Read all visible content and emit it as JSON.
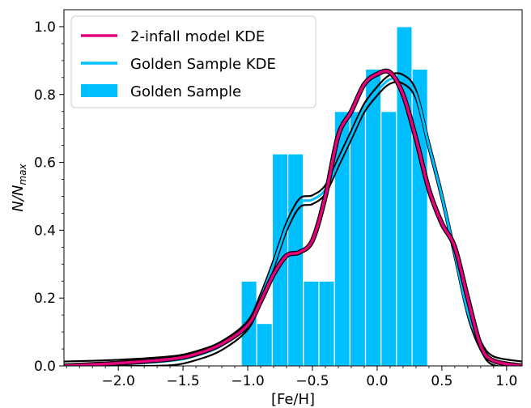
{
  "chart_data": {
    "type": "bar",
    "xlabel": "[Fe/H]",
    "ylabel": "N/N",
    "ylabel_sub": "max",
    "xlim": [
      -2.42,
      1.12
    ],
    "ylim": [
      0.0,
      1.05
    ],
    "xticks": [
      -2.0,
      -1.5,
      -1.0,
      -0.5,
      0.0,
      0.5,
      1.0
    ],
    "xtick_labels": [
      "−2.0",
      "−1.5",
      "−1.0",
      "−0.5",
      "0.0",
      "0.5",
      "1.0"
    ],
    "yticks": [
      0.0,
      0.2,
      0.4,
      0.6,
      0.8,
      1.0
    ],
    "ytick_labels": [
      "0.0",
      "0.2",
      "0.4",
      "0.6",
      "0.8",
      "1.0"
    ],
    "grid": false,
    "legend_position": "top-left",
    "histogram": {
      "name": "Golden Sample",
      "color": "#00bfff",
      "bin_width": 0.12,
      "bin_left_edges": [
        -1.05,
        -0.93,
        -0.81,
        -0.69,
        -0.57,
        -0.45,
        -0.33,
        -0.21,
        -0.09,
        0.03,
        0.15,
        0.27,
        0.39
      ],
      "values": [
        0.25,
        0.125,
        0.625,
        0.625,
        0.25,
        0.25,
        0.75,
        0.75,
        0.875,
        0.75,
        1.0,
        0.875,
        0.0
      ]
    },
    "series": [
      {
        "name": "Golden Sample KDE",
        "color": "#00bfff",
        "x": [
          -2.42,
          -2.0,
          -1.6,
          -1.4,
          -1.2,
          -1.0,
          -0.9,
          -0.8,
          -0.7,
          -0.6,
          -0.5,
          -0.4,
          -0.3,
          -0.2,
          -0.1,
          0.0,
          0.1,
          0.2,
          0.3,
          0.4,
          0.5,
          0.6,
          0.7,
          0.8,
          0.9,
          1.12
        ],
        "y": [
          0.0,
          0.005,
          0.015,
          0.03,
          0.06,
          0.12,
          0.2,
          0.3,
          0.41,
          0.48,
          0.49,
          0.52,
          0.6,
          0.68,
          0.76,
          0.81,
          0.845,
          0.845,
          0.8,
          0.65,
          0.5,
          0.33,
          0.16,
          0.06,
          0.015,
          0.0
        ],
        "offset": 0.013
      },
      {
        "name": "2-infall model KDE",
        "color": "#e6007e",
        "x": [
          -2.42,
          -2.0,
          -1.6,
          -1.4,
          -1.2,
          -1.0,
          -0.9,
          -0.8,
          -0.7,
          -0.6,
          -0.5,
          -0.4,
          -0.3,
          -0.2,
          -0.1,
          0.0,
          0.1,
          0.2,
          0.3,
          0.4,
          0.5,
          0.6,
          0.7,
          0.8,
          0.9,
          1.12
        ],
        "y": [
          0.0,
          0.008,
          0.02,
          0.035,
          0.065,
          0.12,
          0.19,
          0.27,
          0.325,
          0.335,
          0.37,
          0.5,
          0.68,
          0.75,
          0.83,
          0.86,
          0.865,
          0.8,
          0.67,
          0.52,
          0.42,
          0.35,
          0.2,
          0.06,
          0.015,
          0.0
        ]
      }
    ],
    "legend": [
      {
        "label": "2-infall model KDE",
        "kind": "line",
        "color": "#e6007e"
      },
      {
        "label": "Golden Sample KDE",
        "kind": "line",
        "color": "#00bfff"
      },
      {
        "label": "Golden Sample",
        "kind": "patch",
        "color": "#00bfff"
      }
    ]
  }
}
